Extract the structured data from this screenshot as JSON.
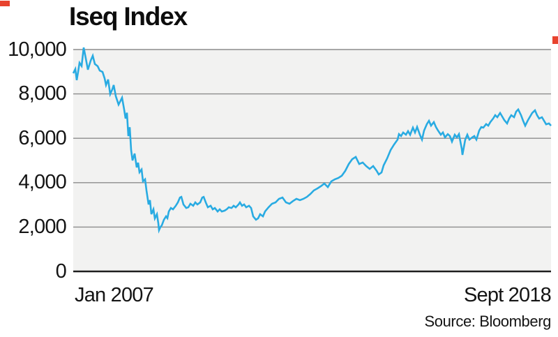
{
  "chart_data": {
    "type": "line",
    "title": "Iseq Index",
    "x_start_label": "Jan 2007",
    "x_end_label": "Sept 2018",
    "source": "Source: Bloomberg",
    "ylim": [
      0,
      10000
    ],
    "y_tick_values": [
      10000,
      8000,
      6000,
      4000,
      2000,
      0
    ],
    "y_tick_labels": [
      "10,000",
      "8,000",
      "6,000",
      "4,000",
      "2,000",
      "0"
    ],
    "grid": "horizontal",
    "legend_position": "none",
    "colors": {
      "line": "#29abe2",
      "plot_background": "#f2f2f1",
      "gridline": "#8c8c8c",
      "baseline_axis": "#1f1f1f",
      "text": "#141414",
      "crop_mark_red": "#e8432e"
    },
    "series": [
      {
        "name": "Iseq Index",
        "points_format": "[fraction_of_time_span_Jan2007_to_Sept2018, index_value]",
        "points": [
          [
            0.0,
            8930
          ],
          [
            0.0044,
            9120
          ],
          [
            0.0073,
            8620
          ],
          [
            0.0102,
            9000
          ],
          [
            0.0131,
            9400
          ],
          [
            0.0175,
            9260
          ],
          [
            0.0219,
            10090
          ],
          [
            0.0263,
            9600
          ],
          [
            0.0307,
            9090
          ],
          [
            0.0365,
            9500
          ],
          [
            0.0409,
            9720
          ],
          [
            0.0453,
            9350
          ],
          [
            0.0511,
            9250
          ],
          [
            0.0555,
            9050
          ],
          [
            0.0613,
            8990
          ],
          [
            0.0657,
            8700
          ],
          [
            0.0686,
            8400
          ],
          [
            0.073,
            8650
          ],
          [
            0.0774,
            7990
          ],
          [
            0.0818,
            8200
          ],
          [
            0.0847,
            8400
          ],
          [
            0.0891,
            7900
          ],
          [
            0.0949,
            7520
          ],
          [
            0.0993,
            7700
          ],
          [
            0.1022,
            7830
          ],
          [
            0.1066,
            7300
          ],
          [
            0.1095,
            6890
          ],
          [
            0.1124,
            7150
          ],
          [
            0.1153,
            6100
          ],
          [
            0.1182,
            6500
          ],
          [
            0.1212,
            5470
          ],
          [
            0.1241,
            5000
          ],
          [
            0.1285,
            5310
          ],
          [
            0.1328,
            4690
          ],
          [
            0.1358,
            4900
          ],
          [
            0.1387,
            4470
          ],
          [
            0.1431,
            4590
          ],
          [
            0.146,
            4060
          ],
          [
            0.1504,
            4150
          ],
          [
            0.1533,
            3650
          ],
          [
            0.1577,
            3020
          ],
          [
            0.1606,
            3210
          ],
          [
            0.1635,
            2580
          ],
          [
            0.1679,
            2800
          ],
          [
            0.1708,
            2390
          ],
          [
            0.1752,
            2580
          ],
          [
            0.1781,
            2170
          ],
          [
            0.1796,
            1860
          ],
          [
            0.1825,
            2000
          ],
          [
            0.1854,
            2080
          ],
          [
            0.1898,
            2330
          ],
          [
            0.1942,
            2480
          ],
          [
            0.1971,
            2400
          ],
          [
            0.2,
            2700
          ],
          [
            0.2044,
            2860
          ],
          [
            0.2088,
            2800
          ],
          [
            0.2146,
            2960
          ],
          [
            0.219,
            3110
          ],
          [
            0.2234,
            3330
          ],
          [
            0.2263,
            3360
          ],
          [
            0.2307,
            3020
          ],
          [
            0.2365,
            2860
          ],
          [
            0.2409,
            2890
          ],
          [
            0.2453,
            3050
          ],
          [
            0.2511,
            2960
          ],
          [
            0.2555,
            3110
          ],
          [
            0.2599,
            3020
          ],
          [
            0.2657,
            3110
          ],
          [
            0.2701,
            3330
          ],
          [
            0.273,
            3360
          ],
          [
            0.2774,
            3110
          ],
          [
            0.2818,
            2890
          ],
          [
            0.2876,
            2960
          ],
          [
            0.292,
            2800
          ],
          [
            0.2964,
            2860
          ],
          [
            0.3022,
            2700
          ],
          [
            0.3066,
            2800
          ],
          [
            0.3109,
            2700
          ],
          [
            0.3168,
            2740
          ],
          [
            0.3212,
            2800
          ],
          [
            0.3255,
            2890
          ],
          [
            0.3314,
            2860
          ],
          [
            0.3358,
            2960
          ],
          [
            0.3401,
            2890
          ],
          [
            0.346,
            3020
          ],
          [
            0.3489,
            3110
          ],
          [
            0.3533,
            2960
          ],
          [
            0.3577,
            3020
          ],
          [
            0.362,
            2890
          ],
          [
            0.3679,
            2960
          ],
          [
            0.3723,
            2860
          ],
          [
            0.3766,
            2480
          ],
          [
            0.3825,
            2330
          ],
          [
            0.3869,
            2390
          ],
          [
            0.3912,
            2580
          ],
          [
            0.3971,
            2480
          ],
          [
            0.4015,
            2700
          ],
          [
            0.4088,
            2890
          ],
          [
            0.4161,
            3050
          ],
          [
            0.4234,
            3110
          ],
          [
            0.4307,
            3270
          ],
          [
            0.438,
            3330
          ],
          [
            0.4453,
            3110
          ],
          [
            0.4526,
            3050
          ],
          [
            0.4599,
            3170
          ],
          [
            0.4672,
            3270
          ],
          [
            0.4745,
            3210
          ],
          [
            0.4818,
            3270
          ],
          [
            0.4891,
            3360
          ],
          [
            0.4964,
            3490
          ],
          [
            0.5036,
            3650
          ],
          [
            0.5109,
            3740
          ],
          [
            0.5182,
            3840
          ],
          [
            0.5255,
            3960
          ],
          [
            0.5328,
            3800
          ],
          [
            0.5401,
            4060
          ],
          [
            0.5474,
            4150
          ],
          [
            0.5547,
            4210
          ],
          [
            0.562,
            4310
          ],
          [
            0.5693,
            4530
          ],
          [
            0.5766,
            4840
          ],
          [
            0.5839,
            5060
          ],
          [
            0.5912,
            5160
          ],
          [
            0.5985,
            4840
          ],
          [
            0.6058,
            4910
          ],
          [
            0.6131,
            4750
          ],
          [
            0.6204,
            4620
          ],
          [
            0.6277,
            4750
          ],
          [
            0.635,
            4530
          ],
          [
            0.6394,
            4370
          ],
          [
            0.6453,
            4460
          ],
          [
            0.6496,
            4780
          ],
          [
            0.6569,
            5090
          ],
          [
            0.6642,
            5470
          ],
          [
            0.6715,
            5720
          ],
          [
            0.6788,
            5940
          ],
          [
            0.6818,
            6190
          ],
          [
            0.6861,
            6100
          ],
          [
            0.6905,
            6260
          ],
          [
            0.6964,
            6160
          ],
          [
            0.7007,
            6320
          ],
          [
            0.7051,
            6160
          ],
          [
            0.7109,
            6480
          ],
          [
            0.7153,
            6260
          ],
          [
            0.7197,
            6510
          ],
          [
            0.7255,
            6160
          ],
          [
            0.7299,
            5940
          ],
          [
            0.7343,
            6350
          ],
          [
            0.7401,
            6640
          ],
          [
            0.7445,
            6790
          ],
          [
            0.7489,
            6570
          ],
          [
            0.7547,
            6730
          ],
          [
            0.7591,
            6510
          ],
          [
            0.7635,
            6350
          ],
          [
            0.7693,
            6160
          ],
          [
            0.7737,
            6260
          ],
          [
            0.7781,
            6040
          ],
          [
            0.7839,
            6190
          ],
          [
            0.7883,
            6100
          ],
          [
            0.7927,
            5850
          ],
          [
            0.7985,
            6160
          ],
          [
            0.8029,
            6040
          ],
          [
            0.8073,
            6190
          ],
          [
            0.8131,
            5530
          ],
          [
            0.8146,
            5250
          ],
          [
            0.8204,
            5940
          ],
          [
            0.8248,
            6160
          ],
          [
            0.8292,
            5940
          ],
          [
            0.835,
            6040
          ],
          [
            0.8394,
            6100
          ],
          [
            0.8438,
            5940
          ],
          [
            0.8496,
            6350
          ],
          [
            0.854,
            6510
          ],
          [
            0.8584,
            6480
          ],
          [
            0.8642,
            6640
          ],
          [
            0.8686,
            6570
          ],
          [
            0.873,
            6730
          ],
          [
            0.8788,
            6890
          ],
          [
            0.8832,
            7040
          ],
          [
            0.8876,
            6950
          ],
          [
            0.8934,
            7140
          ],
          [
            0.8978,
            6980
          ],
          [
            0.9022,
            6820
          ],
          [
            0.908,
            6670
          ],
          [
            0.9124,
            6890
          ],
          [
            0.9168,
            7040
          ],
          [
            0.9226,
            6950
          ],
          [
            0.927,
            7200
          ],
          [
            0.9314,
            7300
          ],
          [
            0.9372,
            7040
          ],
          [
            0.9416,
            6790
          ],
          [
            0.946,
            6570
          ],
          [
            0.9518,
            6820
          ],
          [
            0.9562,
            6980
          ],
          [
            0.9606,
            7140
          ],
          [
            0.9664,
            7260
          ],
          [
            0.9708,
            7040
          ],
          [
            0.9752,
            6890
          ],
          [
            0.981,
            6950
          ],
          [
            0.9854,
            6790
          ],
          [
            0.9898,
            6630
          ],
          [
            0.9956,
            6670
          ],
          [
            1.0,
            6570
          ]
        ]
      }
    ]
  }
}
